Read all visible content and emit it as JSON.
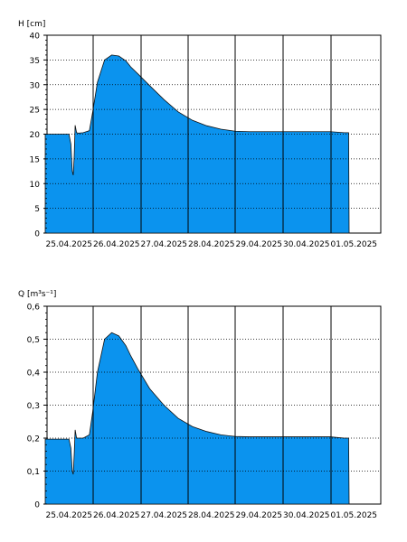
{
  "chart_data": [
    {
      "type": "area",
      "ylabel": "H [cm]",
      "yticks": [
        "0",
        "5",
        "10",
        "15",
        "20",
        "25",
        "30",
        "35",
        "40"
      ],
      "ylim": [
        0,
        40
      ],
      "x_tick_labels": [
        "25.04.2025",
        "26.04.2025",
        "27.04.2025",
        "28.04.2025",
        "29.04.2025",
        "30.04.2025",
        "01.05.2025"
      ],
      "xlim_days": [
        0,
        7.0
      ],
      "grid": true,
      "fill_color": "#0b93ee",
      "series": [
        {
          "x_days": [
            0.0,
            0.5,
            0.54,
            0.57,
            0.59,
            0.61,
            0.63,
            0.66,
            0.7,
            0.8,
            0.93,
            1.0,
            1.1,
            1.25,
            1.4,
            1.55,
            1.7,
            1.8,
            1.95,
            2.2,
            2.5,
            2.8,
            3.1,
            3.4,
            3.7,
            4.0,
            4.3,
            4.6,
            5.0,
            5.5,
            6.0,
            6.3,
            6.39,
            6.4
          ],
          "values": [
            20.0,
            20.0,
            18.0,
            12.5,
            11.7,
            15.5,
            21.8,
            20.3,
            20.2,
            20.3,
            20.7,
            24.5,
            30.5,
            35.0,
            36.0,
            35.8,
            34.8,
            33.6,
            32.2,
            29.8,
            27.0,
            24.5,
            22.8,
            21.7,
            21.0,
            20.6,
            20.5,
            20.5,
            20.5,
            20.5,
            20.5,
            20.3,
            20.3,
            0
          ]
        }
      ]
    },
    {
      "type": "area",
      "ylabel": "Q [m³s⁻¹]",
      "yticks": [
        "0",
        "0,1",
        "0,2",
        "0,3",
        "0,4",
        "0,5",
        "0,6"
      ],
      "ylim": [
        0,
        0.6
      ],
      "x_tick_labels": [
        "25.04.2025",
        "26.04.2025",
        "27.04.2025",
        "28.04.2025",
        "29.04.2025",
        "30.04.2025",
        "01.05.2025"
      ],
      "xlim_days": [
        0,
        7.0
      ],
      "grid": true,
      "fill_color": "#0b93ee",
      "series": [
        {
          "x_days": [
            0.0,
            0.5,
            0.54,
            0.57,
            0.59,
            0.61,
            0.63,
            0.66,
            0.7,
            0.8,
            0.93,
            1.0,
            1.1,
            1.25,
            1.4,
            1.55,
            1.7,
            1.8,
            1.95,
            2.2,
            2.5,
            2.8,
            3.1,
            3.4,
            3.7,
            4.0,
            4.3,
            4.6,
            5.0,
            5.5,
            6.0,
            6.3,
            6.39,
            6.4
          ],
          "values": [
            0.197,
            0.197,
            0.17,
            0.1,
            0.09,
            0.15,
            0.225,
            0.2,
            0.2,
            0.2,
            0.21,
            0.28,
            0.4,
            0.5,
            0.52,
            0.51,
            0.48,
            0.45,
            0.41,
            0.35,
            0.3,
            0.26,
            0.235,
            0.22,
            0.21,
            0.205,
            0.204,
            0.204,
            0.204,
            0.204,
            0.204,
            0.2,
            0.2,
            0
          ]
        }
      ]
    }
  ]
}
